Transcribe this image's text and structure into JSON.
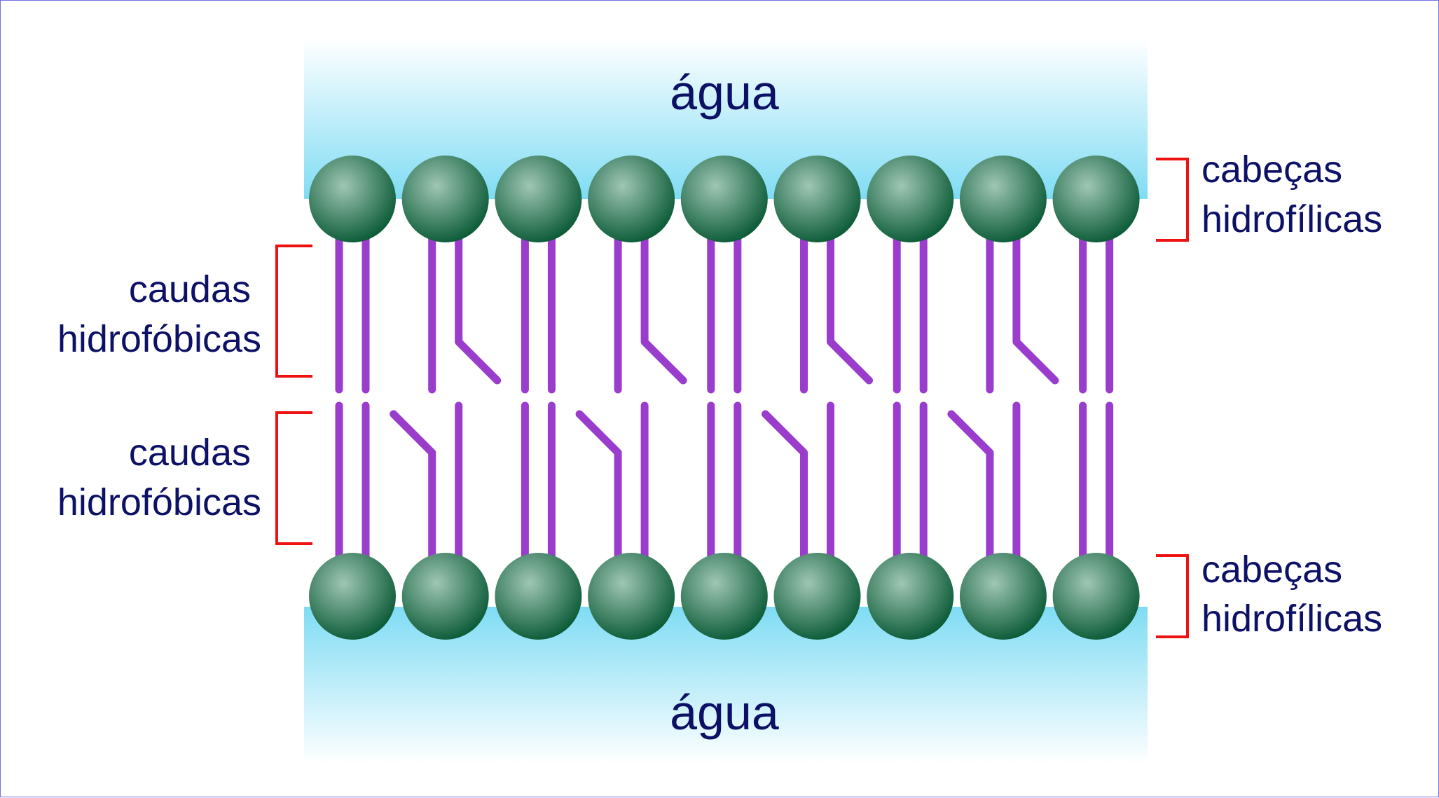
{
  "water": {
    "top_label": "água",
    "bottom_label": "água"
  },
  "labels": {
    "heads_top": [
      "cabeças",
      "hidrofílicas"
    ],
    "heads_bottom": [
      "cabeças",
      "hidrofílicas"
    ],
    "tails_top": [
      "caudas",
      "hidrofóbicas"
    ],
    "tails_bottom": [
      "caudas",
      "hidrofóbicas"
    ]
  },
  "colors": {
    "water_gradient_edge": "#7fdcf4",
    "water_gradient_fade": "#ffffff",
    "head_highlight": "#9fc6b4",
    "head_dark": "#0a5a36",
    "tail": "#9a3ccc",
    "bracket": "#ee1111",
    "text": "#0d1166",
    "border": "#6f6fe6"
  },
  "membrane": {
    "molecules_per_layer": 9,
    "top_layer_kinked": [
      false,
      true,
      false,
      true,
      false,
      true,
      false,
      true,
      false
    ],
    "bottom_layer_kinked": [
      false,
      true,
      false,
      true,
      false,
      true,
      false,
      true,
      false
    ]
  }
}
